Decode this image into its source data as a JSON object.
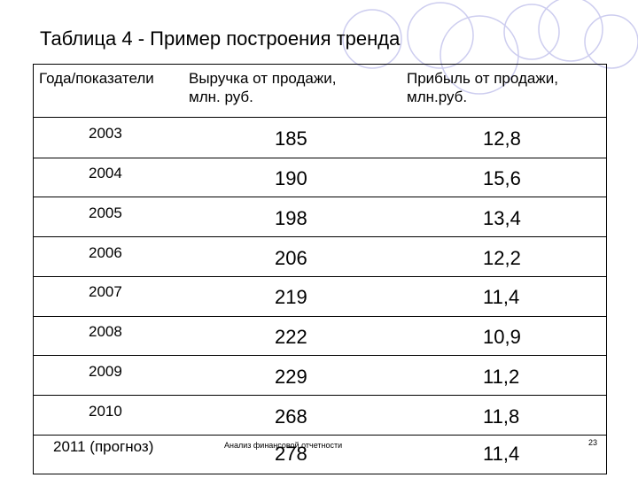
{
  "slide": {
    "title": "Таблица 4 - Пример построения тренда",
    "footer": "Анализ финансовой отчетности",
    "page_number": "23"
  },
  "table": {
    "headers": [
      "Года/показатели",
      "Выручка от продажи,\nмлн. руб.",
      "Прибыль от продажи,\nмлн.руб."
    ],
    "rows": [
      {
        "year": "2003",
        "revenue": "185",
        "profit": "12,8"
      },
      {
        "year": "2004",
        "revenue": "190",
        "profit": "15,6"
      },
      {
        "year": "2005",
        "revenue": "198",
        "profit": "13,4"
      },
      {
        "year": "2006",
        "revenue": "206",
        "profit": "12,2"
      },
      {
        "year": "2007",
        "revenue": "219",
        "profit": "11,4"
      },
      {
        "year": "2008",
        "revenue": "222",
        "profit": "10,9"
      },
      {
        "year": "2009",
        "revenue": "229",
        "profit": "11,2"
      },
      {
        "year": "2010",
        "revenue": "268",
        "profit": "11,8"
      },
      {
        "year": "2011 (прогноз)",
        "revenue": "278",
        "profit": "11,4"
      }
    ]
  },
  "colors": {
    "decoration_stroke": "#c8c8ea",
    "text": "#000000"
  }
}
